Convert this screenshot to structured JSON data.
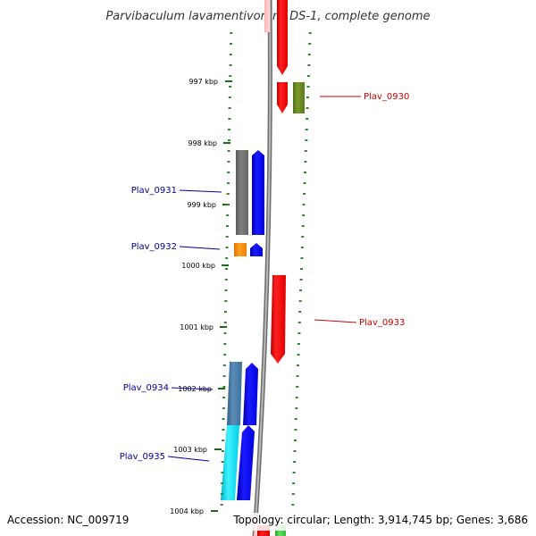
{
  "title": "Parvibaculum lavamentivorans DS-1, complete genome",
  "accession": "Accession: NC_009719",
  "summary": "Topology: circular; Length: 3,914,745 bp; Genes: 3,686",
  "axis": {
    "unit": "kbp",
    "ticks": [
      "997 kbp",
      "998 kbp",
      "999 kbp",
      "1000 kbp",
      "1001 kbp",
      "1002 kbp",
      "1003 kbp",
      "1004 kbp"
    ]
  },
  "colors": {
    "forward_label": "#cc0000",
    "reverse_label": "#000099",
    "backbone": "#888888",
    "dots": "#2e8b2e"
  },
  "genes": [
    {
      "label": "Plav_0930",
      "strand": "forward",
      "cds_color": "#ff0000",
      "cog_color": "#6b8e23"
    },
    {
      "label": "Plav_0931",
      "strand": "reverse",
      "cds_color": "#0000ff",
      "cog_color": "#6e6e6e"
    },
    {
      "label": "Plav_0932",
      "strand": "reverse",
      "cds_color": "#0000ff",
      "cog_color": "#ff8c00"
    },
    {
      "label": "Plav_0933",
      "strand": "forward",
      "cds_color": "#ff0000",
      "cog_color": null
    },
    {
      "label": "Plav_0934",
      "strand": "reverse",
      "cds_color": "#0000ff",
      "cog_color": "#4682b4"
    },
    {
      "label": "Plav_0935",
      "strand": "reverse",
      "cds_color": "#0000ff",
      "cog_color": "#00e5ff"
    }
  ]
}
